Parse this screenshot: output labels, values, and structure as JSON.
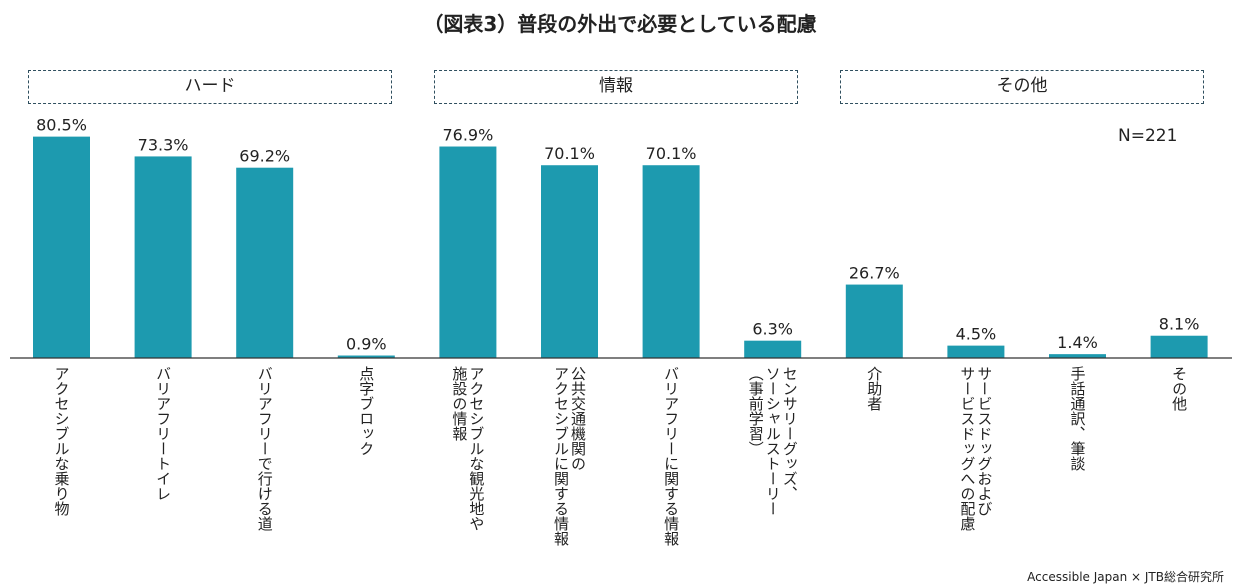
{
  "title": "（図表3）普段の外出で必要としている配慮",
  "groups": [
    "ハード",
    "情報",
    "その他"
  ],
  "sample_label": "N=221",
  "source": "Accessible Japan × JTB総合研究所",
  "colors": {
    "bar": "#1d9aaf",
    "axis": "#333333",
    "text": "#222222"
  },
  "chart_data": {
    "type": "bar",
    "title": "（図表3）普段の外出で必要としている配慮",
    "xlabel": "",
    "ylabel": "",
    "ylim": [
      0,
      100
    ],
    "grid": false,
    "categories": [
      [
        "アクセシブルな乗り物"
      ],
      [
        "バリアフリートイレ"
      ],
      [
        "バリアフリーで行ける道"
      ],
      [
        "点字ブロック"
      ],
      [
        "アクセシブルな観光地や",
        "施設の情報"
      ],
      [
        "公共交通機関の",
        "アクセシブルに関する情報"
      ],
      [
        "バリアフリーに関する情報"
      ],
      [
        "センサリーグッズ、",
        "ソーシャルストーリー",
        "（事前学習）"
      ],
      [
        "介助者"
      ],
      [
        "サービスドッグおよび",
        "サービスドッグへの配慮"
      ],
      [
        "手話通訳、筆談"
      ],
      [
        "その他"
      ]
    ],
    "values": [
      80.5,
      73.3,
      69.2,
      0.9,
      76.9,
      70.1,
      70.1,
      6.3,
      26.7,
      4.5,
      1.4,
      8.1
    ],
    "value_labels": [
      "80.5%",
      "73.3%",
      "69.2%",
      "0.9%",
      "76.9%",
      "70.1%",
      "70.1%",
      "6.3%",
      "26.7%",
      "4.5%",
      "1.4%",
      "8.1%"
    ]
  }
}
